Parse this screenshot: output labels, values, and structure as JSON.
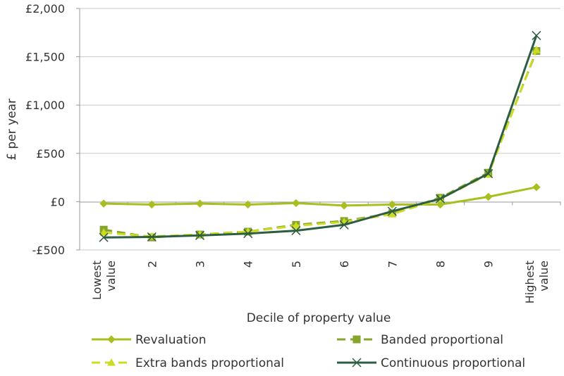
{
  "chart_data": {
    "type": "line",
    "xlabel": "Decile of property value",
    "ylabel": "£ per year",
    "categories": [
      [
        "Lowest",
        "value"
      ],
      [
        "2"
      ],
      [
        "3"
      ],
      [
        "4"
      ],
      [
        "5"
      ],
      [
        "6"
      ],
      [
        "7"
      ],
      [
        "8"
      ],
      [
        "9"
      ],
      [
        "Highest",
        "value"
      ]
    ],
    "ylim": [
      -500,
      2000
    ],
    "yticks": [
      -500,
      0,
      500,
      1000,
      1500,
      2000
    ],
    "ytick_labels": [
      "-£500",
      "£0",
      "£500",
      "£1,000",
      "£1,500",
      "£2,000"
    ],
    "grid": "horizontal",
    "legend_position": "bottom",
    "series": [
      {
        "name": "Revaluation",
        "values": [
          -20,
          -30,
          -20,
          -30,
          -15,
          -40,
          -30,
          -30,
          50,
          150
        ],
        "color": "#a8bf1f",
        "dash": "solid",
        "marker": "diamond"
      },
      {
        "name": "Banded proportional",
        "values": [
          -290,
          -370,
          -340,
          -310,
          -240,
          -200,
          -120,
          40,
          300,
          1560
        ],
        "color": "#86a52d",
        "dash": "dashed",
        "marker": "square"
      },
      {
        "name": "Extra bands proportional",
        "values": [
          -320,
          -360,
          -340,
          -310,
          -250,
          -210,
          -130,
          30,
          280,
          1570
        ],
        "color": "#cddc23",
        "dash": "dashed",
        "marker": "triangle"
      },
      {
        "name": "Continuous proportional",
        "values": [
          -370,
          -365,
          -350,
          -330,
          -300,
          -240,
          -100,
          30,
          290,
          1720
        ],
        "color": "#2e5e42",
        "dash": "solid",
        "marker": "x"
      }
    ]
  }
}
